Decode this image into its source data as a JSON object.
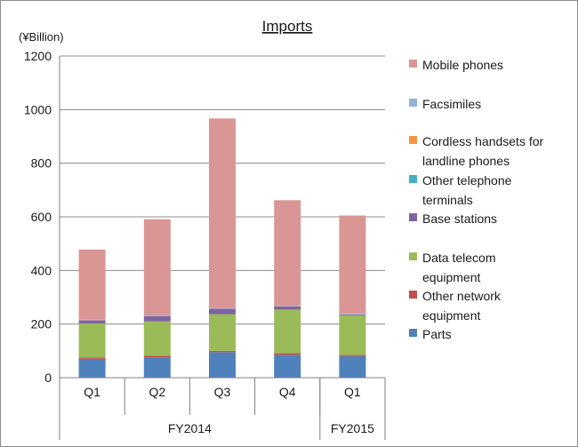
{
  "chart_data": {
    "type": "bar",
    "stacked": true,
    "title": "Imports",
    "unit_label": "(¥Billion)",
    "xlabel": "",
    "ylabel": "",
    "ylim": [
      0,
      1200
    ],
    "yticks": [
      "0",
      "200",
      "400",
      "600",
      "800",
      "1000",
      "1200"
    ],
    "grid": true,
    "legend_position": "right",
    "categories": [
      "Q1",
      "Q2",
      "Q3",
      "Q4",
      "Q1"
    ],
    "fiscal_groups": [
      {
        "label": "FY2014",
        "count": 4
      },
      {
        "label": "FY2015",
        "count": 1
      }
    ],
    "series": [
      {
        "name": "Parts",
        "color": "#4f81bd",
        "values": [
          70,
          75,
          95,
          85,
          80
        ]
      },
      {
        "name": "Other network equipment",
        "color": "#c0504d",
        "values": [
          5,
          7,
          5,
          6,
          5
        ]
      },
      {
        "name": "Data telecom equipment",
        "color": "#9bbb59",
        "values": [
          127,
          128,
          137,
          163,
          147
        ]
      },
      {
        "name": "Base stations",
        "color": "#8064a2",
        "values": [
          12,
          20,
          20,
          12,
          3
        ]
      },
      {
        "name": "Other telephone terminals",
        "color": "#4bacc6",
        "values": [
          0,
          0,
          0,
          0,
          0
        ]
      },
      {
        "name": "Cordless handsets for landline phones",
        "color": "#f79646",
        "values": [
          1,
          1,
          1,
          1,
          1
        ]
      },
      {
        "name": "Facsimiles",
        "color": "#95b3d7",
        "values": [
          3,
          3,
          3,
          3,
          3
        ]
      },
      {
        "name": "Mobile phones",
        "color": "#da9694",
        "values": [
          260,
          357,
          706,
          392,
          366
        ]
      }
    ],
    "legend": [
      {
        "lines": [
          "Mobile phones"
        ],
        "color": "#da9694"
      },
      {
        "lines": [
          "Facsimiles"
        ],
        "color": "#95b3d7"
      },
      {
        "lines": [
          "Cordless handsets for",
          "landline phones"
        ],
        "color": "#f79646"
      },
      {
        "lines": [
          "Other telephone",
          "terminals"
        ],
        "color": "#4bacc6"
      },
      {
        "lines": [
          "Base stations"
        ],
        "color": "#8064a2"
      },
      {
        "lines": [
          "Data telecom",
          "equipment"
        ],
        "color": "#9bbb59"
      },
      {
        "lines": [
          "Other network",
          "equipment"
        ],
        "color": "#c0504d"
      },
      {
        "lines": [
          "Parts"
        ],
        "color": "#4f81bd"
      }
    ]
  }
}
